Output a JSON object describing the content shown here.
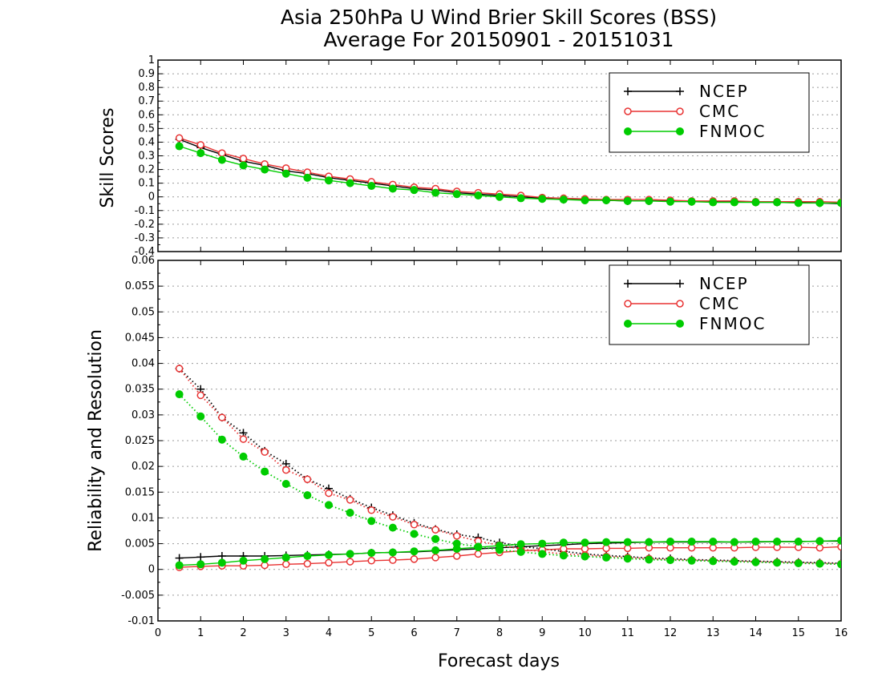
{
  "title_line1": "Asia 250hPa U Wind Brier Skill Scores (BSS)",
  "title_line2": "Average For 20150901 - 20151031",
  "x_label": "Forecast days",
  "x_ticks": [
    "0",
    "1",
    "2",
    "3",
    "4",
    "5",
    "6",
    "7",
    "8",
    "9",
    "10",
    "11",
    "12",
    "13",
    "14",
    "15",
    "16"
  ],
  "top_panel": {
    "ylabel": "Skill Scores",
    "y_ticks": [
      "-0.4",
      "-0.3",
      "-0.2",
      "-0.1",
      "0",
      "0.1",
      "0.2",
      "0.3",
      "0.4",
      "0.5",
      "0.6",
      "0.7",
      "0.8",
      "0.9",
      "1"
    ]
  },
  "bottom_panel": {
    "ylabel": "Reliability and Resolution",
    "y_ticks": [
      "-0.01",
      "-0.005",
      "0",
      "0.005",
      "0.01",
      "0.015",
      "0.02",
      "0.025",
      "0.03",
      "0.035",
      "0.04",
      "0.045",
      "0.05",
      "0.055",
      "0.06"
    ]
  },
  "legend": [
    "NCEP",
    "CMC",
    "FNMOC"
  ],
  "colors": {
    "NCEP": "#000000",
    "CMC": "#e83232",
    "FNMOC": "#00cc00"
  },
  "chart_data": [
    {
      "type": "line",
      "title": "Asia 250hPa U Wind Brier Skill Scores (BSS)",
      "ylabel": "Skill Scores",
      "xlabel": "Forecast days",
      "xlim": [
        0,
        16
      ],
      "ylim": [
        -0.4,
        1
      ],
      "grid": true,
      "legend_position": "top-right",
      "x": [
        0.5,
        1,
        1.5,
        2,
        2.5,
        3,
        3.5,
        4,
        4.5,
        5,
        5.5,
        6,
        6.5,
        7,
        7.5,
        8,
        8.5,
        9,
        9.5,
        10,
        10.5,
        11,
        11.5,
        12,
        12.5,
        13,
        13.5,
        14,
        14.5,
        15,
        15.5,
        16
      ],
      "series": [
        {
          "name": "NCEP",
          "style": "solid",
          "marker": "plus",
          "values": [
            0.42,
            0.36,
            0.31,
            0.26,
            0.23,
            0.19,
            0.17,
            0.14,
            0.12,
            0.1,
            0.08,
            0.06,
            0.05,
            0.03,
            0.02,
            0.01,
            0.0,
            -0.01,
            -0.02,
            -0.02,
            -0.025,
            -0.03,
            -0.03,
            -0.03,
            -0.035,
            -0.035,
            -0.035,
            -0.04,
            -0.04,
            -0.04,
            -0.045,
            -0.05
          ]
        },
        {
          "name": "CMC",
          "style": "solid",
          "marker": "open-circle",
          "values": [
            0.43,
            0.38,
            0.32,
            0.28,
            0.24,
            0.21,
            0.18,
            0.15,
            0.13,
            0.11,
            0.09,
            0.07,
            0.06,
            0.04,
            0.03,
            0.02,
            0.01,
            -0.005,
            -0.01,
            -0.015,
            -0.02,
            -0.02,
            -0.02,
            -0.025,
            -0.03,
            -0.03,
            -0.03,
            -0.035,
            -0.035,
            -0.035,
            -0.035,
            -0.04
          ]
        },
        {
          "name": "FNMOC",
          "style": "solid",
          "marker": "filled-circle",
          "values": [
            0.37,
            0.32,
            0.27,
            0.23,
            0.2,
            0.17,
            0.14,
            0.12,
            0.1,
            0.08,
            0.06,
            0.05,
            0.03,
            0.02,
            0.01,
            0.0,
            -0.01,
            -0.015,
            -0.02,
            -0.025,
            -0.025,
            -0.03,
            -0.03,
            -0.035,
            -0.035,
            -0.04,
            -0.04,
            -0.04,
            -0.04,
            -0.045,
            -0.045,
            -0.045
          ]
        }
      ]
    },
    {
      "type": "line",
      "title": "",
      "ylabel": "Reliability and Resolution",
      "xlabel": "Forecast days",
      "xlim": [
        0,
        16
      ],
      "ylim": [
        -0.01,
        0.06
      ],
      "grid": true,
      "legend_position": "top-right",
      "x": [
        0.5,
        1,
        1.5,
        2,
        2.5,
        3,
        3.5,
        4,
        4.5,
        5,
        5.5,
        6,
        6.5,
        7,
        7.5,
        8,
        8.5,
        9,
        9.5,
        10,
        10.5,
        11,
        11.5,
        12,
        12.5,
        13,
        13.5,
        14,
        14.5,
        15,
        15.5,
        16
      ],
      "series": [
        {
          "name": "NCEP",
          "metric": "reliability",
          "style": "dotted",
          "marker": "plus",
          "values": [
            0.039,
            0.035,
            0.0295,
            0.0265,
            0.023,
            0.0205,
            0.0175,
            0.0157,
            0.0137,
            0.012,
            0.0105,
            0.009,
            0.0078,
            0.0068,
            0.0062,
            0.0052,
            0.0045,
            0.004,
            0.0035,
            0.003,
            0.0027,
            0.0025,
            0.0022,
            0.0021,
            0.0019,
            0.0018,
            0.0017,
            0.0016,
            0.0015,
            0.0014,
            0.0013,
            0.0012
          ]
        },
        {
          "name": "NCEP",
          "metric": "resolution",
          "style": "solid",
          "marker": "plus",
          "values": [
            0.0022,
            0.0024,
            0.0026,
            0.0026,
            0.0026,
            0.0027,
            0.0028,
            0.0029,
            0.003,
            0.0032,
            0.0033,
            0.0034,
            0.0036,
            0.0038,
            0.004,
            0.0042,
            0.0044,
            0.0046,
            0.0048,
            0.005,
            0.0051,
            0.0052,
            0.0053,
            0.0053,
            0.0053,
            0.0053,
            0.0053,
            0.0053,
            0.0054,
            0.0054,
            0.0055,
            0.0055
          ]
        },
        {
          "name": "CMC",
          "metric": "reliability",
          "style": "dotted",
          "marker": "open-circle",
          "values": [
            0.039,
            0.0338,
            0.0295,
            0.0253,
            0.0228,
            0.0193,
            0.0175,
            0.0148,
            0.0135,
            0.0115,
            0.0102,
            0.0087,
            0.0077,
            0.0065,
            0.0055,
            0.0047,
            0.004,
            0.0034,
            0.003,
            0.0028,
            0.0025,
            0.0023,
            0.0021,
            0.0019,
            0.0018,
            0.0017,
            0.0016,
            0.0015,
            0.0014,
            0.0013,
            0.0012,
            0.0011
          ]
        },
        {
          "name": "CMC",
          "metric": "resolution",
          "style": "solid",
          "marker": "open-circle",
          "values": [
            0.0004,
            0.0006,
            0.0007,
            0.0007,
            0.0008,
            0.001,
            0.0011,
            0.0013,
            0.0015,
            0.0017,
            0.0018,
            0.002,
            0.0023,
            0.0026,
            0.003,
            0.0033,
            0.0036,
            0.0038,
            0.004,
            0.004,
            0.0041,
            0.0041,
            0.0042,
            0.0042,
            0.0042,
            0.0042,
            0.0042,
            0.0043,
            0.0043,
            0.0043,
            0.0042,
            0.0044
          ]
        },
        {
          "name": "FNMOC",
          "metric": "reliability",
          "style": "dotted",
          "marker": "filled-circle",
          "values": [
            0.034,
            0.0297,
            0.0252,
            0.0219,
            0.019,
            0.0166,
            0.0144,
            0.0125,
            0.011,
            0.0094,
            0.0081,
            0.0069,
            0.0059,
            0.005,
            0.0044,
            0.0038,
            0.0034,
            0.003,
            0.0027,
            0.0025,
            0.0023,
            0.0021,
            0.0019,
            0.0018,
            0.0017,
            0.0016,
            0.0015,
            0.0014,
            0.0013,
            0.0012,
            0.0011,
            0.001
          ]
        },
        {
          "name": "FNMOC",
          "metric": "resolution",
          "style": "solid",
          "marker": "filled-circle",
          "values": [
            0.0008,
            0.001,
            0.0013,
            0.0017,
            0.002,
            0.0023,
            0.0026,
            0.0028,
            0.003,
            0.0032,
            0.0033,
            0.0035,
            0.0037,
            0.004,
            0.0043,
            0.0046,
            0.0049,
            0.005,
            0.0052,
            0.0052,
            0.0053,
            0.0053,
            0.0053,
            0.0054,
            0.0054,
            0.0054,
            0.0053,
            0.0054,
            0.0054,
            0.0054,
            0.0055,
            0.0056
          ]
        }
      ]
    }
  ]
}
